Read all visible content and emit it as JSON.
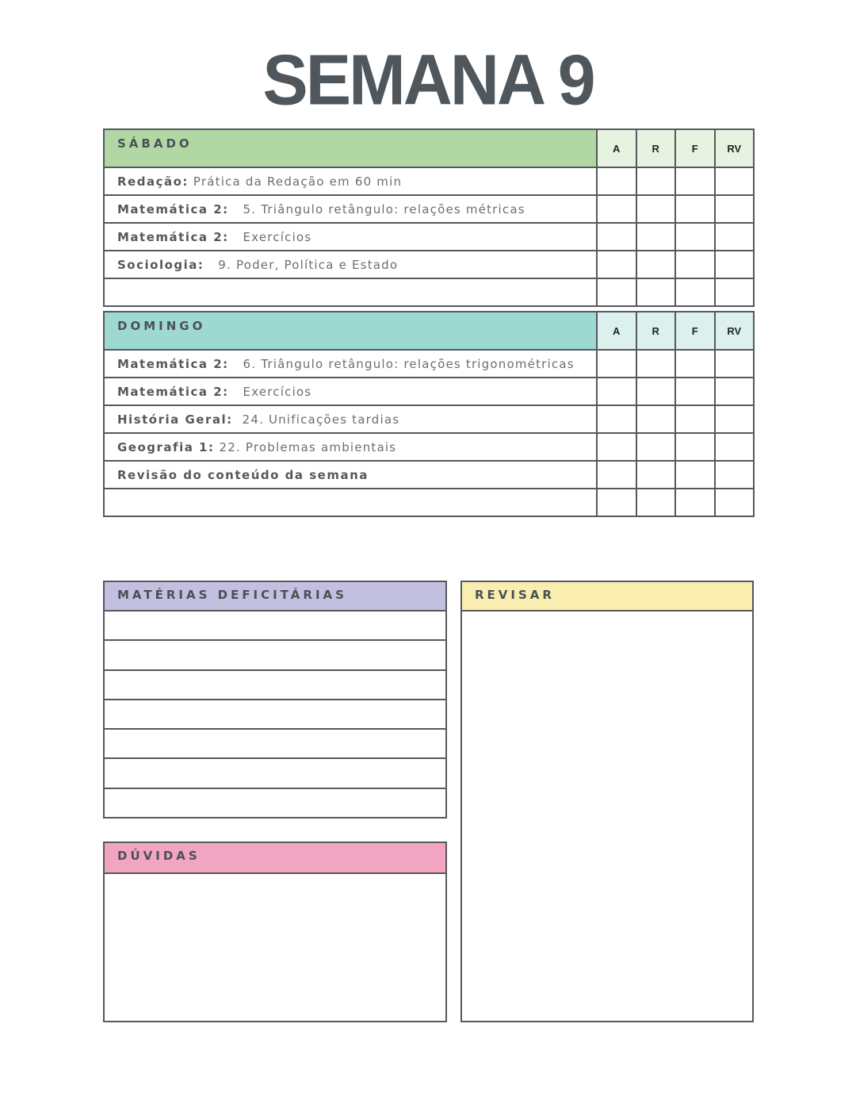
{
  "title": "SEMANA 9",
  "columns": [
    "A",
    "R",
    "F",
    "RV"
  ],
  "colors": {
    "sabado": "#b1d8a4",
    "sabado_cols": "#e6f3e1",
    "domingo": "#9ed9d1",
    "domingo_cols": "#dcf1ee",
    "materias": "#c3bfe0",
    "revisar": "#f9eeb0",
    "duvidas": "#f2a5c0",
    "border": "#55595c"
  },
  "sabado": {
    "label": "SÁBADO",
    "tasks": [
      {
        "subject": "Redação:",
        "topic": " Prática da Redação em 60 min"
      },
      {
        "subject": "Matemática 2:",
        "topic": "   5. Triângulo retângulo: relações métricas"
      },
      {
        "subject": "Matemática 2:",
        "topic": "   Exercícios"
      },
      {
        "subject": "Sociologia:",
        "topic": "   9. Poder, Política e Estado"
      },
      {
        "subject": "",
        "topic": ""
      }
    ]
  },
  "domingo": {
    "label": "DOMINGO",
    "tasks": [
      {
        "subject": "Matemática 2:",
        "topic": "   6. Triângulo retângulo: relações trigonométricas"
      },
      {
        "subject": "Matemática 2:",
        "topic": "   Exercícios"
      },
      {
        "subject": "História Geral:",
        "topic": "  24. Unificações tardias"
      },
      {
        "subject": "Geografia 1:",
        "topic": " 22. Problemas ambientais"
      },
      {
        "subject": "Revisão do conteúdo da semana",
        "topic": ""
      },
      {
        "subject": "",
        "topic": ""
      }
    ]
  },
  "materias": {
    "label": "MATÉRIAS DEFICITÁRIAS"
  },
  "revisar": {
    "label": "REVISAR"
  },
  "duvidas": {
    "label": "DÚVIDAS"
  }
}
